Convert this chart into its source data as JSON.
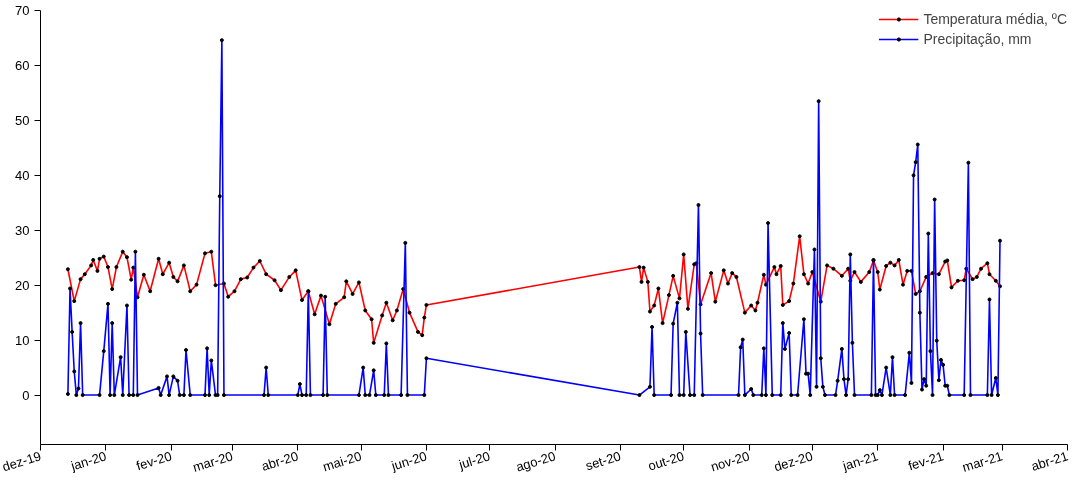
{
  "chart_data": {
    "type": "line",
    "marker": "circle",
    "legend": "top right",
    "grid": false,
    "xlim": [
      "2019-12-01",
      "2021-04-01"
    ],
    "xticks": [
      {
        "value": "2019-12-01",
        "label": "dez-19"
      },
      {
        "value": "2020-01-01",
        "label": "jan-20"
      },
      {
        "value": "2020-02-01",
        "label": "fev-20"
      },
      {
        "value": "2020-03-01",
        "label": "mar-20"
      },
      {
        "value": "2020-04-01",
        "label": "abr-20"
      },
      {
        "value": "2020-05-01",
        "label": "mai-20"
      },
      {
        "value": "2020-06-01",
        "label": "jun-20"
      },
      {
        "value": "2020-07-01",
        "label": "jul-20"
      },
      {
        "value": "2020-08-01",
        "label": "ago-20"
      },
      {
        "value": "2020-09-01",
        "label": "set-20"
      },
      {
        "value": "2020-10-01",
        "label": "out-20"
      },
      {
        "value": "2020-11-01",
        "label": "nov-20"
      },
      {
        "value": "2020-12-01",
        "label": "dez-20"
      },
      {
        "value": "2021-01-01",
        "label": "jan-21"
      },
      {
        "value": "2021-02-01",
        "label": "fev-21"
      },
      {
        "value": "2021-03-01",
        "label": "mar-21"
      },
      {
        "value": "2021-04-01",
        "label": "abr-21"
      }
    ],
    "ylim": [
      -9,
      70
    ],
    "yticks": [
      0,
      10,
      20,
      30,
      40,
      50,
      60,
      70
    ],
    "series": [
      {
        "name": "Temperatura média, ºC",
        "color": "#ff0000",
        "x": [
          "2019-12-14",
          "2019-12-17",
          "2019-12-20",
          "2019-12-22",
          "2019-12-25",
          "2019-12-26",
          "2019-12-28",
          "2019-12-29",
          "2019-12-31",
          "2020-01-02",
          "2020-01-04",
          "2020-01-06",
          "2020-01-09",
          "2020-01-11",
          "2020-01-13",
          "2020-01-14",
          "2020-01-16",
          "2020-01-19",
          "2020-01-22",
          "2020-01-26",
          "2020-01-28",
          "2020-01-31",
          "2020-02-02",
          "2020-02-04",
          "2020-02-07",
          "2020-02-10",
          "2020-02-13",
          "2020-02-17",
          "2020-02-20",
          "2020-02-22",
          "2020-02-26",
          "2020-02-28",
          "2020-03-02",
          "2020-03-05",
          "2020-03-08",
          "2020-03-11",
          "2020-03-14",
          "2020-03-17",
          "2020-03-21",
          "2020-03-24",
          "2020-03-28",
          "2020-03-31",
          "2020-04-03",
          "2020-04-06",
          "2020-04-09",
          "2020-04-12",
          "2020-04-16",
          "2020-04-19",
          "2020-04-23",
          "2020-04-24",
          "2020-04-27",
          "2020-04-30",
          "2020-05-03",
          "2020-05-06",
          "2020-05-07",
          "2020-05-11",
          "2020-05-13",
          "2020-05-16",
          "2020-05-18",
          "2020-05-21",
          "2020-05-24",
          "2020-05-28",
          "2020-05-30",
          "2020-05-31",
          "2020-06-01",
          "2020-09-10",
          "2020-09-11",
          "2020-09-12",
          "2020-09-14",
          "2020-09-15",
          "2020-09-17",
          "2020-09-19",
          "2020-09-21",
          "2020-09-24",
          "2020-09-26",
          "2020-09-29",
          "2020-10-01",
          "2020-10-03",
          "2020-10-06",
          "2020-10-07",
          "2020-10-09",
          "2020-10-14",
          "2020-10-16",
          "2020-10-20",
          "2020-10-22",
          "2020-10-24",
          "2020-10-26",
          "2020-10-30",
          "2020-11-02",
          "2020-11-04",
          "2020-11-05",
          "2020-11-08",
          "2020-11-09",
          "2020-11-13",
          "2020-11-14",
          "2020-11-16",
          "2020-11-17",
          "2020-11-20",
          "2020-11-22",
          "2020-11-25",
          "2020-11-27",
          "2020-11-29",
          "2020-12-01",
          "2020-12-05",
          "2020-12-08",
          "2020-12-11",
          "2020-12-15",
          "2020-12-18",
          "2020-12-19",
          "2020-12-21",
          "2020-12-24",
          "2020-12-28",
          "2020-12-30",
          "2021-01-01",
          "2021-01-02",
          "2021-01-05",
          "2021-01-07",
          "2021-01-09",
          "2021-01-11",
          "2021-01-13",
          "2021-01-15",
          "2021-01-17",
          "2021-01-19",
          "2021-01-21",
          "2021-01-24",
          "2021-01-27",
          "2021-01-30",
          "2021-02-02",
          "2021-02-03",
          "2021-02-05",
          "2021-02-08",
          "2021-02-11",
          "2021-02-12",
          "2021-02-15",
          "2021-02-17",
          "2021-02-19",
          "2021-02-22",
          "2021-02-23",
          "2021-02-26",
          "2021-02-28"
        ],
        "values": [
          22.9,
          17.1,
          21.1,
          22.0,
          23.6,
          24.6,
          22.6,
          24.8,
          25.2,
          23.3,
          19.3,
          23.3,
          26.1,
          25.1,
          21.0,
          23.2,
          17.8,
          21.9,
          18.9,
          24.8,
          22.0,
          24.1,
          21.5,
          20.7,
          23.6,
          18.9,
          20.1,
          25.8,
          26.1,
          20.0,
          20.3,
          17.9,
          18.9,
          21.1,
          21.4,
          23.2,
          24.4,
          22.0,
          20.9,
          19.1,
          21.5,
          22.7,
          17.3,
          18.9,
          14.7,
          18.1,
          12.9,
          16.6,
          17.8,
          20.7,
          18.4,
          20.5,
          15.4,
          13.8,
          9.5,
          14.5,
          16.8,
          13.6,
          15.4,
          19.3,
          15.0,
          11.5,
          10.9,
          14.1,
          16.4,
          23.3,
          20.6,
          23.2,
          20.6,
          15.2,
          16.3,
          19.4,
          13.1,
          18.2,
          21.7,
          17.6,
          25.6,
          15.7,
          23.8,
          24.0,
          16.5,
          22.2,
          17.0,
          22.7,
          20.3,
          22.2,
          21.5,
          15.0,
          16.3,
          15.4,
          16.8,
          21.9,
          20.1,
          23.3,
          22.0,
          23.5,
          16.4,
          17.1,
          20.3,
          28.9,
          22.0,
          20.3,
          22.4,
          17.0,
          23.6,
          23.0,
          21.7,
          23.0,
          20.8,
          22.4,
          20.6,
          22.4,
          24.5,
          22.4,
          19.2,
          23.5,
          24.1,
          23.6,
          24.6,
          20.1,
          22.6,
          22.6,
          18.4,
          18.9,
          21.5,
          22.2,
          22.0,
          24.3,
          24.5,
          19.6,
          20.8,
          20.9,
          23.0,
          21.1,
          21.5,
          23.0,
          24.0,
          22.0,
          20.8,
          19.8
        ]
      },
      {
        "name": "Precipitação, mm",
        "color": "#0000ff",
        "x": [
          "2019-12-14",
          "2019-12-15",
          "2019-12-16",
          "2019-12-17",
          "2019-12-18",
          "2019-12-19",
          "2019-12-20",
          "2019-12-21",
          "2019-12-29",
          "2019-12-31",
          "2020-01-02",
          "2020-01-03",
          "2020-01-04",
          "2020-01-05",
          "2020-01-08",
          "2020-01-09",
          "2020-01-11",
          "2020-01-12",
          "2020-01-14",
          "2020-01-15",
          "2020-01-16",
          "2020-01-26",
          "2020-01-27",
          "2020-01-30",
          "2020-01-31",
          "2020-02-02",
          "2020-02-04",
          "2020-02-05",
          "2020-02-07",
          "2020-02-08",
          "2020-02-10",
          "2020-02-17",
          "2020-02-18",
          "2020-02-19",
          "2020-02-20",
          "2020-02-22",
          "2020-02-23",
          "2020-02-24",
          "2020-02-25",
          "2020-02-26",
          "2020-03-16",
          "2020-03-17",
          "2020-03-18",
          "2020-04-01",
          "2020-04-02",
          "2020-04-03",
          "2020-04-05",
          "2020-04-06",
          "2020-04-07",
          "2020-04-13",
          "2020-04-14",
          "2020-04-15",
          "2020-04-30",
          "2020-05-02",
          "2020-05-03",
          "2020-05-05",
          "2020-05-07",
          "2020-05-08",
          "2020-05-12",
          "2020-05-13",
          "2020-05-14",
          "2020-05-20",
          "2020-05-22",
          "2020-05-23",
          "2020-05-31",
          "2020-06-01",
          "2020-09-10",
          "2020-09-15",
          "2020-09-16",
          "2020-09-17",
          "2020-09-25",
          "2020-09-26",
          "2020-09-28",
          "2020-09-29",
          "2020-10-01",
          "2020-10-02",
          "2020-10-04",
          "2020-10-06",
          "2020-10-08",
          "2020-10-09",
          "2020-10-10",
          "2020-10-27",
          "2020-10-28",
          "2020-10-29",
          "2020-10-30",
          "2020-11-02",
          "2020-11-03",
          "2020-11-07",
          "2020-11-08",
          "2020-11-09",
          "2020-11-10",
          "2020-11-12",
          "2020-11-16",
          "2020-11-17",
          "2020-11-18",
          "2020-11-20",
          "2020-11-21",
          "2020-11-24",
          "2020-11-27",
          "2020-11-28",
          "2020-11-29",
          "2020-11-30",
          "2020-12-02",
          "2020-12-03",
          "2020-12-04",
          "2020-12-05",
          "2020-12-06",
          "2020-12-07",
          "2020-12-12",
          "2020-12-13",
          "2020-12-15",
          "2020-12-16",
          "2020-12-17",
          "2020-12-18",
          "2020-12-19",
          "2020-12-20",
          "2020-12-21",
          "2020-12-29",
          "2020-12-30",
          "2020-12-31",
          "2021-01-01",
          "2021-01-02",
          "2021-01-03",
          "2021-01-05",
          "2021-01-07",
          "2021-01-08",
          "2021-01-09",
          "2021-01-14",
          "2021-01-16",
          "2021-01-17",
          "2021-01-18",
          "2021-01-19",
          "2021-01-20",
          "2021-01-21",
          "2021-01-22",
          "2021-01-23",
          "2021-01-24",
          "2021-01-25",
          "2021-01-26",
          "2021-01-27",
          "2021-01-28",
          "2021-01-29",
          "2021-01-30",
          "2021-01-31",
          "2021-02-01",
          "2021-02-02",
          "2021-02-03",
          "2021-02-04",
          "2021-02-11",
          "2021-02-13",
          "2021-02-14",
          "2021-02-22",
          "2021-02-23",
          "2021-02-24",
          "2021-02-26",
          "2021-02-27",
          "2021-02-28"
        ],
        "values": [
          0.2,
          19.4,
          11.5,
          4.3,
          0,
          1.2,
          13.1,
          0,
          0,
          8.0,
          16.6,
          0,
          13.1,
          0,
          6.9,
          0,
          16.3,
          0,
          0,
          26.1,
          0,
          1.3,
          0,
          3.4,
          0,
          3.4,
          2.6,
          0,
          0,
          8.2,
          0,
          0,
          8.5,
          0,
          6.3,
          0,
          0,
          36.2,
          64.6,
          0,
          0,
          5.0,
          0,
          0,
          2.0,
          0,
          0,
          18.9,
          0,
          0,
          17.9,
          0,
          0,
          5.0,
          0,
          0,
          4.5,
          0,
          0,
          9.4,
          0,
          0,
          27.7,
          0,
          0,
          6.7,
          0,
          1.5,
          12.4,
          0,
          0,
          13.0,
          16.8,
          0,
          0,
          11.5,
          0,
          0,
          34.6,
          11.2,
          0,
          0,
          8.7,
          10.1,
          0,
          1.1,
          0,
          0,
          8.5,
          0,
          31.3,
          0,
          0,
          13.1,
          8.4,
          11.3,
          0,
          0,
          13.8,
          3.9,
          3.9,
          0,
          26.5,
          1.5,
          53.5,
          6.7,
          1.5,
          0,
          0,
          2.6,
          8.4,
          2.9,
          0,
          2.9,
          25.6,
          9.5,
          0,
          0,
          24.6,
          0,
          0,
          0.9,
          0,
          5.0,
          0,
          6.9,
          0,
          0,
          7.7,
          2.2,
          40.0,
          42.4,
          45.6,
          15.0,
          1.0,
          2.9,
          1.7,
          29.4,
          8.0,
          0,
          35.6,
          9.9,
          2.7,
          6.4,
          5.5,
          1.7,
          1.7,
          0,
          0,
          42.3,
          0,
          0,
          17.4,
          0,
          3.1,
          0,
          28.1
        ]
      }
    ]
  }
}
